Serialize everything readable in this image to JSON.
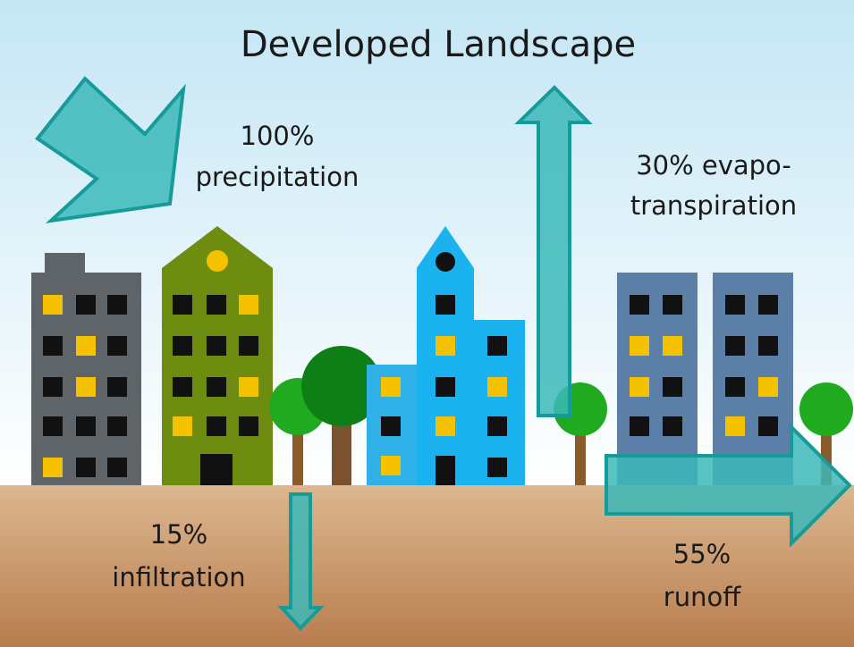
{
  "title": "Developed Landscape",
  "flows": [
    {
      "percent": "100%",
      "label": "precipitation"
    },
    {
      "percent": "30%",
      "label_lines": [
        "evapo-",
        "transpiration"
      ]
    },
    {
      "percent": "15%",
      "label": "infiltration"
    },
    {
      "percent": "55%",
      "label": "runoff"
    }
  ]
}
